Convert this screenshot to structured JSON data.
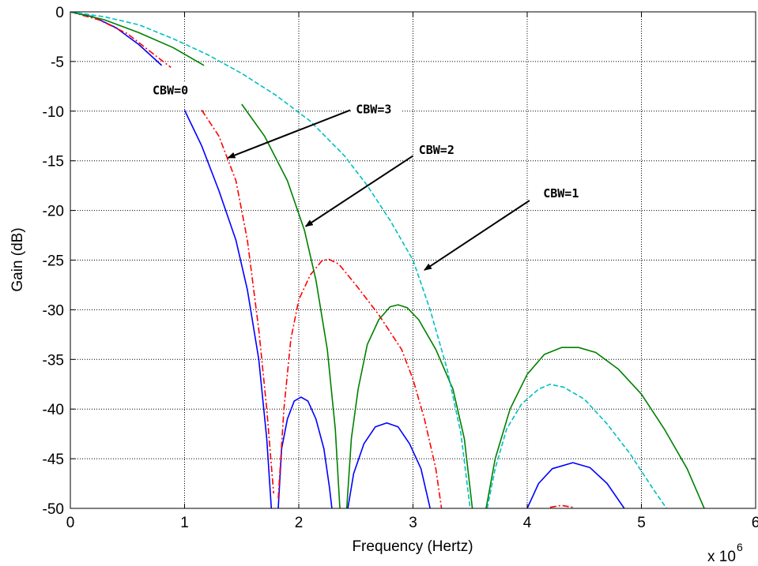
{
  "chart_data": {
    "type": "line",
    "title": "",
    "xlabel": "Frequency (Hertz)",
    "ylabel": "Gain (dB)",
    "x_multiplier_label": "x 10",
    "x_multiplier_exponent": "6",
    "xlim": [
      0,
      6
    ],
    "ylim": [
      -50,
      0
    ],
    "x_ticks": [
      0,
      1,
      2,
      3,
      4,
      5,
      6
    ],
    "y_ticks": [
      0,
      -5,
      -10,
      -15,
      -20,
      -25,
      -30,
      -35,
      -40,
      -45,
      -50
    ],
    "grid": true,
    "legend": "none",
    "series": [
      {
        "color": "#0000ff",
        "style": "solid",
        "segments": [
          [
            [
              0,
              0
            ],
            [
              0.2,
              -0.5
            ],
            [
              0.4,
              -1.6
            ],
            [
              0.6,
              -3.3
            ],
            [
              0.8,
              -5.4
            ]
          ],
          [
            [
              1.0,
              -9.9
            ],
            [
              1.15,
              -13.5
            ],
            [
              1.3,
              -18.0
            ],
            [
              1.45,
              -23.0
            ],
            [
              1.55,
              -28.0
            ],
            [
              1.65,
              -35.0
            ],
            [
              1.72,
              -43.0
            ],
            [
              1.76,
              -50.0
            ]
          ],
          [
            [
              1.82,
              -50.0
            ],
            [
              1.85,
              -44.0
            ],
            [
              1.9,
              -41.0
            ],
            [
              1.96,
              -39.2
            ],
            [
              2.02,
              -38.8
            ],
            [
              2.08,
              -39.2
            ],
            [
              2.15,
              -41.0
            ],
            [
              2.22,
              -44.0
            ],
            [
              2.27,
              -48.0
            ],
            [
              2.29,
              -50.0
            ]
          ],
          [
            [
              2.43,
              -50.0
            ],
            [
              2.48,
              -46.5
            ],
            [
              2.57,
              -43.5
            ],
            [
              2.67,
              -41.8
            ],
            [
              2.77,
              -41.4
            ],
            [
              2.87,
              -41.8
            ],
            [
              2.97,
              -43.5
            ],
            [
              3.07,
              -46.0
            ],
            [
              3.15,
              -50.0
            ]
          ],
          [
            [
              4.0,
              -50.0
            ],
            [
              4.1,
              -47.5
            ],
            [
              4.22,
              -46.0
            ],
            [
              4.4,
              -45.4
            ],
            [
              4.55,
              -45.9
            ],
            [
              4.7,
              -47.5
            ],
            [
              4.85,
              -50.0
            ]
          ]
        ]
      },
      {
        "color": "#ff0000",
        "style": "dashdot",
        "segments": [
          [
            [
              0,
              0
            ],
            [
              0.25,
              -0.8
            ],
            [
              0.5,
              -2.2
            ],
            [
              0.7,
              -4.0
            ],
            [
              0.88,
              -5.6
            ]
          ],
          [
            [
              1.15,
              -9.9
            ],
            [
              1.3,
              -12.5
            ],
            [
              1.45,
              -17.0
            ],
            [
              1.55,
              -23.0
            ],
            [
              1.65,
              -32.0
            ],
            [
              1.72,
              -40.0
            ],
            [
              1.78,
              -48.5
            ]
          ],
          [
            [
              1.82,
              -49.0
            ],
            [
              1.87,
              -40.0
            ],
            [
              1.93,
              -33.0
            ],
            [
              2.0,
              -29.0
            ],
            [
              2.1,
              -26.5
            ],
            [
              2.2,
              -25.1
            ],
            [
              2.26,
              -24.9
            ],
            [
              2.35,
              -25.4
            ],
            [
              2.5,
              -27.5
            ],
            [
              2.7,
              -30.5
            ],
            [
              2.9,
              -34.0
            ],
            [
              3.0,
              -37.0
            ],
            [
              3.1,
              -41.0
            ],
            [
              3.2,
              -46.0
            ],
            [
              3.25,
              -50.0
            ]
          ],
          [
            [
              4.2,
              -49.9
            ],
            [
              4.3,
              -49.7
            ],
            [
              4.4,
              -49.9
            ]
          ]
        ]
      },
      {
        "color": "#008000",
        "style": "solid",
        "segments": [
          [
            [
              0,
              0
            ],
            [
              0.3,
              -0.8
            ],
            [
              0.6,
              -2.1
            ],
            [
              0.9,
              -3.6
            ],
            [
              1.17,
              -5.4
            ]
          ],
          [
            [
              1.5,
              -9.3
            ],
            [
              1.7,
              -12.5
            ],
            [
              1.9,
              -17.0
            ],
            [
              2.05,
              -22.0
            ],
            [
              2.15,
              -27.0
            ],
            [
              2.25,
              -34.0
            ],
            [
              2.32,
              -42.0
            ],
            [
              2.36,
              -50.0
            ]
          ],
          [
            [
              2.42,
              -50.0
            ],
            [
              2.46,
              -43.0
            ],
            [
              2.52,
              -38.0
            ],
            [
              2.6,
              -33.5
            ],
            [
              2.7,
              -31.0
            ],
            [
              2.8,
              -29.7
            ],
            [
              2.87,
              -29.5
            ],
            [
              2.95,
              -29.8
            ],
            [
              3.05,
              -31.0
            ],
            [
              3.2,
              -34.0
            ],
            [
              3.35,
              -38.0
            ],
            [
              3.45,
              -43.0
            ],
            [
              3.52,
              -50.0
            ]
          ],
          [
            [
              3.64,
              -50.0
            ],
            [
              3.72,
              -45.0
            ],
            [
              3.85,
              -40.0
            ],
            [
              4.0,
              -36.5
            ],
            [
              4.15,
              -34.5
            ],
            [
              4.3,
              -33.8
            ],
            [
              4.45,
              -33.8
            ],
            [
              4.6,
              -34.3
            ],
            [
              4.8,
              -36.0
            ],
            [
              5.0,
              -38.5
            ],
            [
              5.2,
              -42.0
            ],
            [
              5.4,
              -46.0
            ],
            [
              5.55,
              -50.0
            ]
          ]
        ]
      },
      {
        "color": "#00c0c0",
        "style": "dashed",
        "segments": [
          [
            [
              0,
              0
            ],
            [
              0.3,
              -0.5
            ],
            [
              0.6,
              -1.3
            ],
            [
              0.9,
              -2.7
            ],
            [
              1.2,
              -4.3
            ],
            [
              1.5,
              -6.2
            ],
            [
              1.8,
              -8.4
            ],
            [
              2.1,
              -11.0
            ],
            [
              2.4,
              -14.5
            ],
            [
              2.6,
              -17.5
            ],
            [
              2.8,
              -21.0
            ],
            [
              3.0,
              -25.0
            ],
            [
              3.15,
              -30.0
            ],
            [
              3.3,
              -36.0
            ],
            [
              3.42,
              -42.5
            ],
            [
              3.5,
              -50.0
            ]
          ],
          [
            [
              3.65,
              -50.0
            ],
            [
              3.72,
              -46.0
            ],
            [
              3.82,
              -42.0
            ],
            [
              3.95,
              -39.5
            ],
            [
              4.1,
              -38.0
            ],
            [
              4.2,
              -37.5
            ],
            [
              4.32,
              -37.8
            ],
            [
              4.5,
              -39.0
            ],
            [
              4.7,
              -41.5
            ],
            [
              4.9,
              -44.5
            ],
            [
              5.1,
              -48.0
            ],
            [
              5.22,
              -50.0
            ]
          ]
        ]
      }
    ],
    "annotations": [
      {
        "text": "CBW=0",
        "arrow": false,
        "label_x": 0.72,
        "label_y": -8.3
      },
      {
        "text": "CBW=3",
        "arrow": true,
        "label_x": 2.5,
        "label_y": -10.2,
        "tip_x": 1.38,
        "tip_y": -14.7,
        "tail_x": 2.45,
        "tail_y": -9.9
      },
      {
        "text": "CBW=2",
        "arrow": true,
        "label_x": 3.05,
        "label_y": -14.3,
        "tip_x": 2.06,
        "tip_y": -21.6,
        "tail_x": 3.0,
        "tail_y": -14.5
      },
      {
        "text": "CBW=1",
        "arrow": true,
        "label_x": 4.14,
        "label_y": -18.7,
        "tip_x": 3.1,
        "tip_y": -26.0,
        "tail_x": 4.02,
        "tail_y": -19.0
      }
    ]
  }
}
